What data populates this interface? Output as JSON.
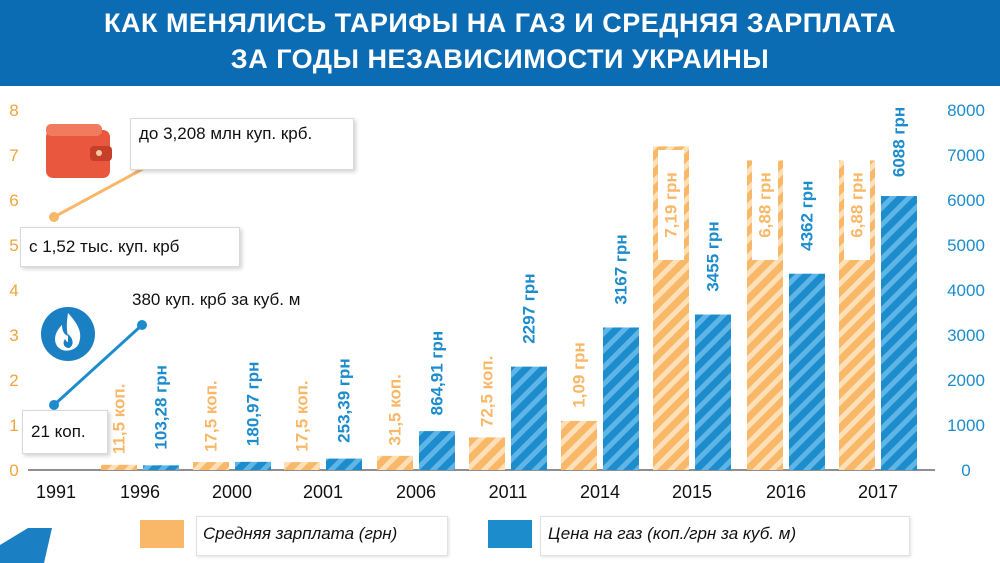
{
  "title": {
    "line1": "КАК МЕНЯЛИСЬ ТАРИФЫ НА ГАЗ И СРЕДНЯЯ ЗАРПЛАТА",
    "line2": "ЗА ГОДЫ НЕЗАВИСИМОСТИ УКРАИНЫ"
  },
  "callouts": {
    "salary_end": "до 3,208 млн куп. крб.",
    "salary_start": "с 1,52 тыс. куп. крб",
    "gas_end": "380 куп. крб за куб. м",
    "gas_start": "21 коп."
  },
  "icons": {
    "wallet": "wallet-icon",
    "flame": "flame-icon"
  },
  "colors": {
    "salary": "#f9b768",
    "salary_stripe": "#fde0b8",
    "gas": "#1c8ccd",
    "gas_stripe": "#5fb6e6",
    "header": "#0b6cb4",
    "left_axis": "#f0a43c",
    "right_axis": "#1c8ccd"
  },
  "chart_data": {
    "type": "bar",
    "categories": [
      "1991",
      "1996",
      "2000",
      "2001",
      "2006",
      "2011",
      "2014",
      "2015",
      "2016",
      "2017"
    ],
    "series": [
      {
        "name": "Средняя зарплата (грн)",
        "axis": "left",
        "values": [
          null,
          0.115,
          0.175,
          0.175,
          0.315,
          0.725,
          1.09,
          7.19,
          6.88,
          6.88
        ],
        "labels": [
          "",
          "11,5 коп.",
          "17,5 коп.",
          "17,5 коп.",
          "31,5 коп.",
          "72,5 коп.",
          "1,09 грн",
          "7,19 грн",
          "6,88 грн",
          "6,88 грн"
        ]
      },
      {
        "name": "Цена на газ (коп./грн за куб. м)",
        "axis": "right",
        "values": [
          null,
          103.28,
          180.97,
          253.39,
          864.91,
          2297,
          3167,
          3455,
          4362,
          6088
        ],
        "labels": [
          "",
          "103,28 грн",
          "180,97 грн",
          "253,39 грн",
          "864,91 грн",
          "2297 грн",
          "3167 грн",
          "3455 грн",
          "4362 грн",
          "6088 грн"
        ]
      }
    ],
    "left_axis": {
      "ylim": [
        0,
        8
      ],
      "ticks": [
        "0",
        "1",
        "2",
        "3",
        "4",
        "5",
        "6",
        "7",
        "8"
      ]
    },
    "right_axis": {
      "ylim": [
        0,
        8000
      ],
      "ticks": [
        "0",
        "1000",
        "2000",
        "3000",
        "4000",
        "5000",
        "6000",
        "7000",
        "8000"
      ]
    },
    "legend": {
      "placement": "bottom",
      "items": [
        "Средняя зарплата (грн)",
        "Цена на газ (коп./грн за куб. м)"
      ]
    }
  }
}
